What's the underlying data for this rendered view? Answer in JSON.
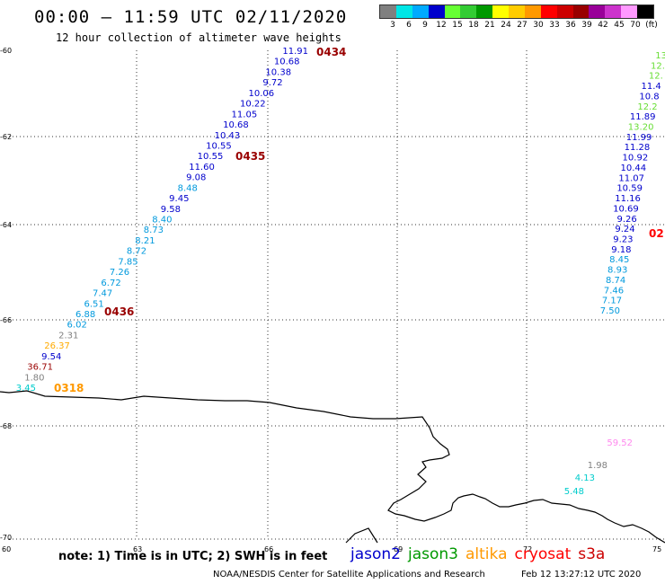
{
  "header": {
    "title": "00:00 – 11:59 UTC 02/11/2020",
    "subtitle": "12 hour collection of altimeter wave heights"
  },
  "legend": {
    "colors": [
      "#808080",
      "#00e6e6",
      "#00aaff",
      "#0000cc",
      "#66ff33",
      "#33cc33",
      "#009900",
      "#ffff00",
      "#ffcc00",
      "#ff9900",
      "#ff0000",
      "#cc0000",
      "#990000",
      "#990099",
      "#cc33cc",
      "#ff99ff",
      "#000000"
    ],
    "labels": [
      "3",
      "6",
      "9",
      "12",
      "15",
      "18",
      "21",
      "24",
      "27",
      "30",
      "33",
      "36",
      "39",
      "42",
      "45",
      "70",
      "(ft)"
    ]
  },
  "axes": {
    "lat_labels": [
      "-60",
      "-62",
      "-64",
      "-66",
      "-68",
      "-70"
    ],
    "lon_labels": [
      "60",
      "63",
      "66",
      "69",
      "72",
      "75"
    ]
  },
  "passes": [
    {
      "id": "0434",
      "color": "#990000"
    },
    {
      "id": "0435",
      "color": "#990000"
    },
    {
      "id": "0436",
      "color": "#990000"
    },
    {
      "id": "0318",
      "color": "#ff9900"
    },
    {
      "id": "02",
      "color": "#ff0000"
    }
  ],
  "track_left_values": [
    "11.91",
    "10.68",
    "10.38",
    "9.72",
    "10.06",
    "10.22",
    "11.05",
    "10.68",
    "10.43",
    "10.55",
    "10.55",
    "11.60",
    "9.08",
    "8.48",
    "9.45",
    "9.58",
    "8.40",
    "8.73",
    "8.21",
    "8.72",
    "7.85",
    "7.26",
    "6.72",
    "7.47",
    "6.51",
    "6.88",
    "6.02",
    "2.31",
    "26.37",
    "9.54",
    "36.71",
    "1.80",
    "3.45"
  ],
  "track_right_values": [
    "13",
    "12.",
    "12.",
    "11.4",
    "10.8",
    "12.2",
    "11.89",
    "13.20",
    "11.99",
    "11.28",
    "10.92",
    "10.44",
    "11.07",
    "10.59",
    "11.16",
    "10.69",
    "9.26",
    "9.24",
    "9.23",
    "9.18",
    "8.45",
    "8.93",
    "8.74",
    "7.46",
    "7.17",
    "7.50"
  ],
  "scattered_values": [
    "59.52",
    "1.98",
    "4.13",
    "5.48"
  ],
  "footer": {
    "note": "note: 1) Time is in UTC; 2) SWH is in feet",
    "satellites": [
      {
        "name": "jason2",
        "color": "#0000cc"
      },
      {
        "name": "jason3",
        "color": "#009900"
      },
      {
        "name": "altika",
        "color": "#ff9900"
      },
      {
        "name": "cryosat",
        "color": "#ff0000"
      },
      {
        "name": "s3a",
        "color": "#cc0000"
      }
    ],
    "credit": "NOAA/NESDIS Center for Satellite Applications and Research",
    "timestamp": "Feb 12 13:27:12 UTC 2020"
  }
}
